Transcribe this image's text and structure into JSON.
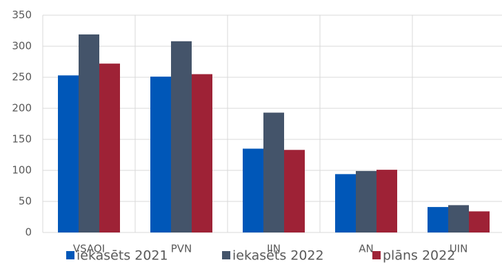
{
  "chart_data": {
    "type": "bar",
    "categories": [
      "VSAOI",
      "PVN",
      "IIN",
      "AN",
      "UIN"
    ],
    "series": [
      {
        "name": "iekasēts 2021",
        "color": "#0057b8",
        "values": [
          253,
          251,
          135,
          94,
          41
        ]
      },
      {
        "name": "iekasēts 2022",
        "color": "#44546a",
        "values": [
          319,
          308,
          193,
          99,
          44
        ]
      },
      {
        "name": "plāns 2022",
        "color": "#9e2236",
        "values": [
          272,
          255,
          133,
          101,
          34
        ]
      }
    ],
    "ylim": [
      0,
      350
    ],
    "yticks": [
      0,
      50,
      100,
      150,
      200,
      250,
      300,
      350
    ],
    "grid": true,
    "legend": "bottom"
  }
}
